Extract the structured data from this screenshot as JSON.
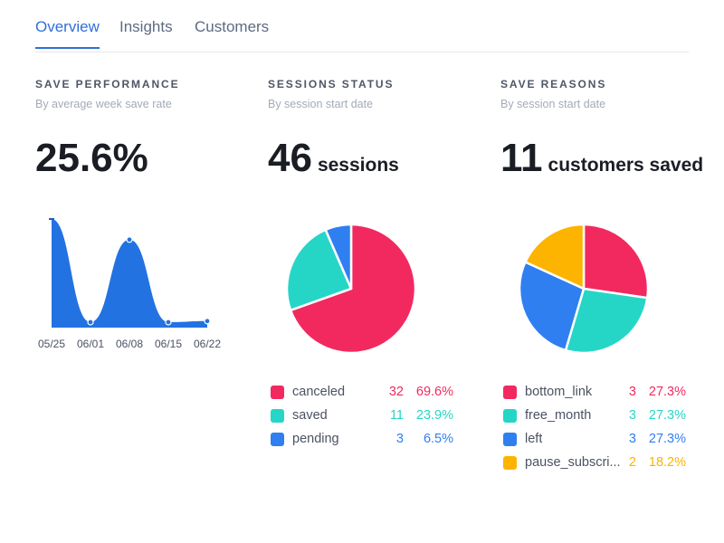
{
  "tabs": [
    {
      "label": "Overview",
      "active": true
    },
    {
      "label": "Insights",
      "active": false
    },
    {
      "label": "Customers",
      "active": false
    }
  ],
  "colors": {
    "accent": "#2f6fd9",
    "canceled": "#f2295f",
    "saved": "#25d6c7",
    "pending": "#2f7ff0",
    "pause": "#fdb400"
  },
  "save_performance": {
    "title": "SAVE PERFORMANCE",
    "subtitle": "By average week save rate",
    "metric": "25.6%"
  },
  "sessions_status": {
    "title": "SESSIONS STATUS",
    "subtitle": "By session start date",
    "metric": "46",
    "metric_unit": "sessions",
    "legend": [
      {
        "name": "canceled",
        "count": "32",
        "pct": "69.6%",
        "color": "#f2295f"
      },
      {
        "name": "saved",
        "count": "11",
        "pct": "23.9%",
        "color": "#25d6c7"
      },
      {
        "name": "pending",
        "count": "3",
        "pct": "6.5%",
        "color": "#2f7ff0"
      }
    ]
  },
  "save_reasons": {
    "title": "SAVE REASONS",
    "subtitle": "By session start date",
    "metric": "11",
    "metric_unit": "customers saved",
    "legend": [
      {
        "name": "bottom_link",
        "count": "3",
        "pct": "27.3%",
        "color": "#f2295f"
      },
      {
        "name": "free_month",
        "count": "3",
        "pct": "27.3%",
        "color": "#25d6c7"
      },
      {
        "name": "left",
        "count": "3",
        "pct": "27.3%",
        "color": "#2f7ff0"
      },
      {
        "name": "pause_subscri...",
        "count": "2",
        "pct": "18.2%",
        "color": "#fdb400"
      }
    ]
  },
  "chart_data": [
    {
      "type": "area",
      "title": "",
      "x": [
        "05/25",
        "06/01",
        "06/08",
        "06/15",
        "06/22"
      ],
      "values": [
        100,
        5,
        81,
        5,
        6
      ],
      "ylim": [
        0,
        100
      ],
      "grid": false
    },
    {
      "type": "pie",
      "categories": [
        "canceled",
        "saved",
        "pending"
      ],
      "values": [
        32,
        11,
        3
      ]
    },
    {
      "type": "pie",
      "categories": [
        "bottom_link",
        "free_month",
        "left",
        "pause_subscri..."
      ],
      "values": [
        3,
        3,
        3,
        2
      ]
    }
  ]
}
